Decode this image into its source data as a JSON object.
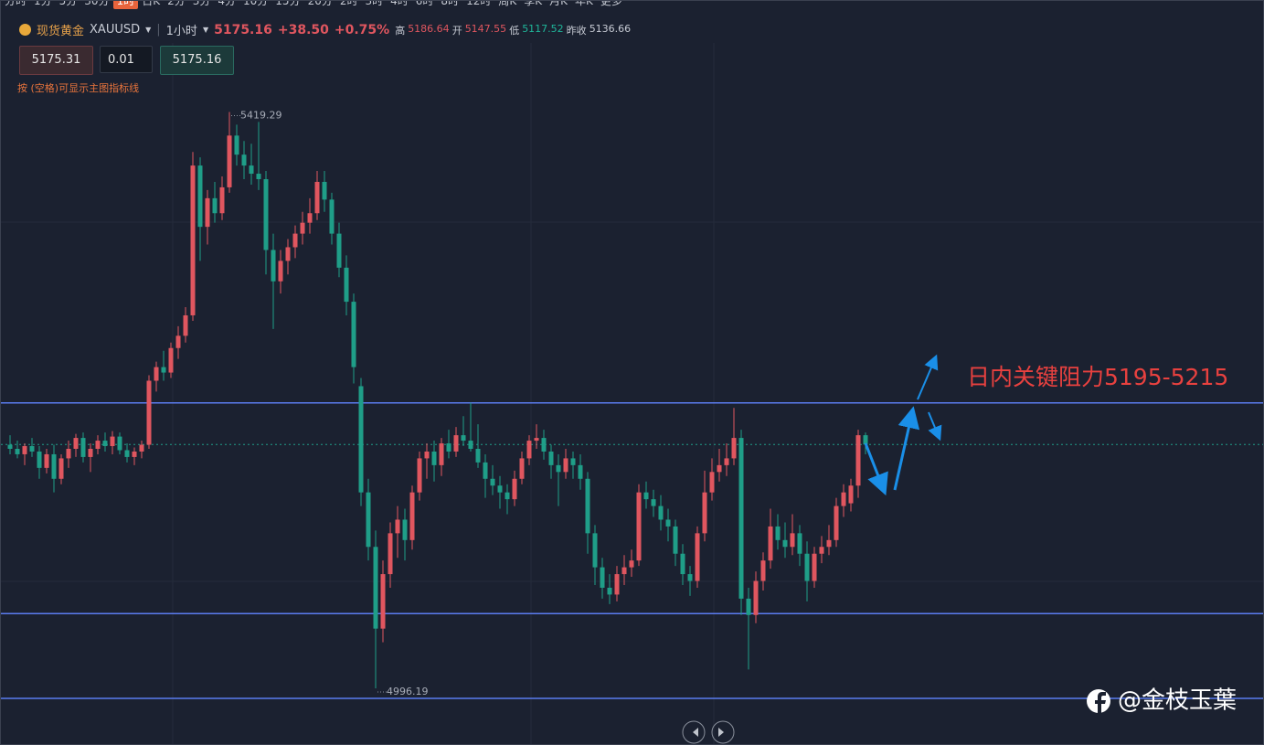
{
  "toolbar": {
    "intervals": [
      "分时",
      "1分",
      "5分",
      "30分",
      "1时",
      "日K",
      "2分",
      "3分",
      "4分",
      "10分",
      "15分",
      "20分",
      "2时",
      "3时",
      "4时",
      "6时",
      "8时",
      "12时",
      "周K",
      "季K",
      "月K",
      "年K",
      "更多"
    ],
    "selected": 4
  },
  "symbol": {
    "name": "现货黄金",
    "code": "XAUUSD",
    "period": "1小时",
    "price": "5175.16",
    "change": "+38.50",
    "change_pct": "+0.75%",
    "high_label": "高",
    "high": "5186.64",
    "open_label": "开",
    "open": "5147.55",
    "low_label": "低",
    "low": "5117.52",
    "prev_label": "昨收",
    "prev": "5136.66"
  },
  "order": {
    "sell": "5175.31",
    "lots": "0.01",
    "buy": "5175.16",
    "hint": "按 (空格)可显示主图指标线"
  },
  "watermark": "@金枝玉葉",
  "chart_data": {
    "type": "candlestick",
    "ylim": [
      4974,
      5470
    ],
    "up_color": "#e0565f",
    "down_color": "#1f9e88",
    "line_color": "#5b7cf0",
    "hlines": [
      5205.7,
      5051,
      4988.8
    ],
    "annotation": "日内关键阻力5195-5215",
    "high_index": 30,
    "low_index": 50,
    "ohlc": [
      [
        5175,
        5182,
        5168,
        5172
      ],
      [
        5172,
        5178,
        5165,
        5168
      ],
      [
        5168,
        5176,
        5160,
        5174
      ],
      [
        5174,
        5180,
        5166,
        5170
      ],
      [
        5170,
        5174,
        5150,
        5158
      ],
      [
        5158,
        5172,
        5154,
        5168
      ],
      [
        5168,
        5175,
        5140,
        5150
      ],
      [
        5150,
        5168,
        5146,
        5165
      ],
      [
        5165,
        5178,
        5158,
        5172
      ],
      [
        5172,
        5183,
        5166,
        5180
      ],
      [
        5180,
        5184,
        5162,
        5166
      ],
      [
        5166,
        5176,
        5155,
        5172
      ],
      [
        5172,
        5182,
        5168,
        5178
      ],
      [
        5178,
        5184,
        5170,
        5174
      ],
      [
        5174,
        5185,
        5168,
        5181
      ],
      [
        5181,
        5184,
        5168,
        5171
      ],
      [
        5171,
        5176,
        5162,
        5166
      ],
      [
        5166,
        5173,
        5160,
        5170
      ],
      [
        5170,
        5178,
        5165,
        5175
      ],
      [
        5175,
        5226,
        5172,
        5222
      ],
      [
        5222,
        5236,
        5214,
        5232
      ],
      [
        5232,
        5244,
        5222,
        5228
      ],
      [
        5228,
        5250,
        5224,
        5246
      ],
      [
        5246,
        5262,
        5238,
        5255
      ],
      [
        5255,
        5276,
        5250,
        5270
      ],
      [
        5270,
        5390,
        5266,
        5380
      ],
      [
        5380,
        5386,
        5310,
        5335
      ],
      [
        5335,
        5362,
        5322,
        5356
      ],
      [
        5356,
        5368,
        5338,
        5345
      ],
      [
        5345,
        5372,
        5340,
        5364
      ],
      [
        5364,
        5419.29,
        5360,
        5402
      ],
      [
        5402,
        5410,
        5380,
        5388
      ],
      [
        5388,
        5398,
        5370,
        5380
      ],
      [
        5380,
        5396,
        5366,
        5374
      ],
      [
        5374,
        5412,
        5362,
        5370
      ],
      [
        5370,
        5376,
        5300,
        5318
      ],
      [
        5318,
        5330,
        5260,
        5295
      ],
      [
        5295,
        5318,
        5286,
        5310
      ],
      [
        5310,
        5326,
        5300,
        5320
      ],
      [
        5320,
        5336,
        5312,
        5330
      ],
      [
        5330,
        5346,
        5322,
        5338
      ],
      [
        5338,
        5356,
        5330,
        5345
      ],
      [
        5345,
        5376,
        5340,
        5368
      ],
      [
        5368,
        5376,
        5346,
        5355
      ],
      [
        5355,
        5360,
        5322,
        5330
      ],
      [
        5330,
        5338,
        5298,
        5305
      ],
      [
        5305,
        5314,
        5270,
        5280
      ],
      [
        5280,
        5286,
        5220,
        5232
      ],
      [
        5218,
        5224,
        5130,
        5140
      ],
      [
        5140,
        5150,
        5090,
        5100
      ],
      [
        5100,
        5112,
        4996.19,
        5040
      ],
      [
        5040,
        5090,
        5030,
        5080
      ],
      [
        5080,
        5118,
        5070,
        5110
      ],
      [
        5110,
        5130,
        5092,
        5120
      ],
      [
        5120,
        5128,
        5090,
        5105
      ],
      [
        5105,
        5145,
        5098,
        5140
      ],
      [
        5140,
        5170,
        5134,
        5165
      ],
      [
        5165,
        5176,
        5150,
        5170
      ],
      [
        5170,
        5178,
        5148,
        5160
      ],
      [
        5160,
        5180,
        5152,
        5176
      ],
      [
        5176,
        5186,
        5165,
        5170
      ],
      [
        5170,
        5188,
        5166,
        5182
      ],
      [
        5182,
        5196,
        5174,
        5178
      ],
      [
        5178,
        5206,
        5170,
        5172
      ],
      [
        5172,
        5190,
        5158,
        5162
      ],
      [
        5162,
        5168,
        5136,
        5150
      ],
      [
        5150,
        5160,
        5138,
        5145
      ],
      [
        5145,
        5152,
        5128,
        5140
      ],
      [
        5140,
        5146,
        5124,
        5135
      ],
      [
        5135,
        5156,
        5130,
        5150
      ],
      [
        5150,
        5170,
        5146,
        5165
      ],
      [
        5165,
        5182,
        5160,
        5178
      ],
      [
        5178,
        5190,
        5172,
        5180
      ],
      [
        5180,
        5186,
        5164,
        5170
      ],
      [
        5170,
        5175,
        5150,
        5160
      ],
      [
        5160,
        5168,
        5130,
        5155
      ],
      [
        5155,
        5172,
        5150,
        5165
      ],
      [
        5165,
        5170,
        5150,
        5160
      ],
      [
        5160,
        5168,
        5142,
        5150
      ],
      [
        5150,
        5155,
        5095,
        5110
      ],
      [
        5110,
        5116,
        5072,
        5085
      ],
      [
        5085,
        5092,
        5062,
        5070
      ],
      [
        5070,
        5080,
        5058,
        5065
      ],
      [
        5065,
        5086,
        5060,
        5080
      ],
      [
        5080,
        5094,
        5072,
        5085
      ],
      [
        5085,
        5098,
        5078,
        5090
      ],
      [
        5090,
        5146,
        5086,
        5140
      ],
      [
        5140,
        5148,
        5128,
        5135
      ],
      [
        5135,
        5142,
        5122,
        5130
      ],
      [
        5130,
        5138,
        5112,
        5120
      ],
      [
        5120,
        5128,
        5104,
        5115
      ],
      [
        5115,
        5120,
        5086,
        5095
      ],
      [
        5095,
        5102,
        5072,
        5080
      ],
      [
        5080,
        5086,
        5064,
        5075
      ],
      [
        5075,
        5115,
        5070,
        5110
      ],
      [
        5110,
        5156,
        5104,
        5140
      ],
      [
        5140,
        5165,
        5134,
        5155
      ],
      [
        5155,
        5172,
        5148,
        5160
      ],
      [
        5160,
        5176,
        5152,
        5165
      ],
      [
        5165,
        5202,
        5160,
        5180
      ],
      [
        5180,
        5186,
        5050,
        5062
      ],
      [
        5062,
        5070,
        5010,
        5050
      ],
      [
        5050,
        5082,
        5044,
        5075
      ],
      [
        5075,
        5096,
        5068,
        5090
      ],
      [
        5090,
        5128,
        5084,
        5115
      ],
      [
        5115,
        5124,
        5098,
        5105
      ],
      [
        5105,
        5118,
        5092,
        5100
      ],
      [
        5100,
        5124,
        5094,
        5110
      ],
      [
        5110,
        5116,
        5086,
        5095
      ],
      [
        5095,
        5104,
        5060,
        5075
      ],
      [
        5075,
        5100,
        5070,
        5095
      ],
      [
        5095,
        5108,
        5088,
        5100
      ],
      [
        5100,
        5116,
        5094,
        5105
      ],
      [
        5105,
        5136,
        5100,
        5130
      ],
      [
        5130,
        5146,
        5122,
        5140
      ],
      [
        5132,
        5150,
        5126,
        5145
      ],
      [
        5145,
        5186,
        5136,
        5182
      ],
      [
        5182,
        5184,
        5168,
        5175.16
      ]
    ]
  }
}
